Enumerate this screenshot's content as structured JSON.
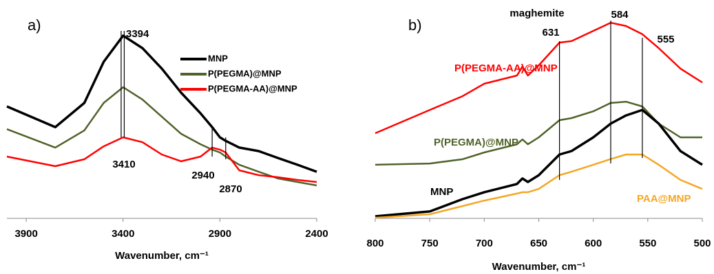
{
  "chart_data": [
    {
      "type": "line",
      "title": "a)",
      "xlabel": "Wavenumber, cm⁻¹",
      "x": [
        4000,
        3750,
        3600,
        3500,
        3400,
        3300,
        3200,
        3100,
        3000,
        2940,
        2900,
        2870,
        2800,
        2700,
        2600,
        2500,
        2400
      ],
      "xlim": [
        4000,
        2400
      ],
      "xticks": [
        3900,
        3400,
        2900,
        2400
      ],
      "ylim": [
        0,
        100
      ],
      "legend": "upper right",
      "series": [
        {
          "name": "MNP",
          "color": "#000000",
          "values": [
            54.7,
            44.6,
            56.4,
            76.5,
            89.3,
            83.2,
            73.2,
            61.4,
            51.3,
            44.6,
            39.6,
            37.9,
            34.6,
            32.9,
            29.5,
            26.2,
            22.8
          ]
        },
        {
          "name": "P(PEGMA)@MNP",
          "color": "#4f6228",
          "values": [
            43.6,
            34.6,
            43.0,
            56.4,
            64.1,
            58.1,
            49.7,
            41.3,
            36.2,
            33.6,
            32.2,
            30.2,
            26.2,
            22.8,
            19.5,
            17.8,
            16.1
          ]
        },
        {
          "name": "P(PEGMA-AA)@MNP",
          "color": "#ff0000",
          "values": [
            30.2,
            25.5,
            28.9,
            35.2,
            39.6,
            37.2,
            31.2,
            27.9,
            30.2,
            34.6,
            33.6,
            32.2,
            23.5,
            21.1,
            20.1,
            18.8,
            17.8
          ]
        }
      ],
      "annotations": [
        {
          "value": 3394,
          "label": "3394"
        },
        {
          "value": 3410,
          "label": "3410"
        },
        {
          "value": 2940,
          "label": "2940"
        },
        {
          "value": 2870,
          "label": "2870"
        }
      ]
    },
    {
      "type": "line",
      "title": "b)",
      "xlabel": "Wavenumber, cm⁻¹",
      "x": [
        800,
        750,
        720,
        700,
        670,
        665,
        660,
        650,
        631,
        620,
        600,
        584,
        570,
        555,
        540,
        520,
        500
      ],
      "xlim": [
        800,
        500
      ],
      "xticks": [
        800,
        750,
        700,
        650,
        600,
        550,
        500
      ],
      "ylim": [
        0,
        100
      ],
      "series": [
        {
          "name": "P(PEGMA-AA)@MNP",
          "color": "#ff0000",
          "values": [
            41.6,
            53.0,
            59.7,
            65.8,
            69.8,
            74.2,
            69.8,
            74.8,
            85.9,
            86.6,
            91.6,
            95.6,
            94.0,
            90.0,
            83.2,
            73.2,
            66.4
          ]
        },
        {
          "name": "P(PEGMA)@MNP",
          "color": "#4f6228",
          "values": [
            26.2,
            26.8,
            28.9,
            32.2,
            36.2,
            38.6,
            36.2,
            39.6,
            48.0,
            49.0,
            52.3,
            56.4,
            57.0,
            54.7,
            46.3,
            39.6,
            39.6
          ]
        },
        {
          "name": "MNP",
          "color": "#000000",
          "values": [
            1.0,
            3.4,
            9.4,
            12.8,
            16.8,
            19.5,
            17.8,
            21.1,
            31.2,
            32.9,
            39.6,
            46.3,
            50.3,
            53.0,
            46.3,
            32.9,
            26.2
          ]
        },
        {
          "name": "PAA@MNP",
          "color": "#f5a623",
          "values": [
            0.3,
            2.0,
            6.0,
            8.7,
            12.1,
            12.8,
            12.8,
            14.4,
            21.1,
            22.8,
            26.2,
            29.0,
            31.2,
            31.2,
            26.2,
            18.8,
            14.4
          ]
        }
      ],
      "annotations": [
        {
          "value": 631,
          "label": "631"
        },
        {
          "value": 584,
          "label": "584"
        },
        {
          "value": 555,
          "label": "555"
        }
      ],
      "note": "maghemite"
    }
  ]
}
